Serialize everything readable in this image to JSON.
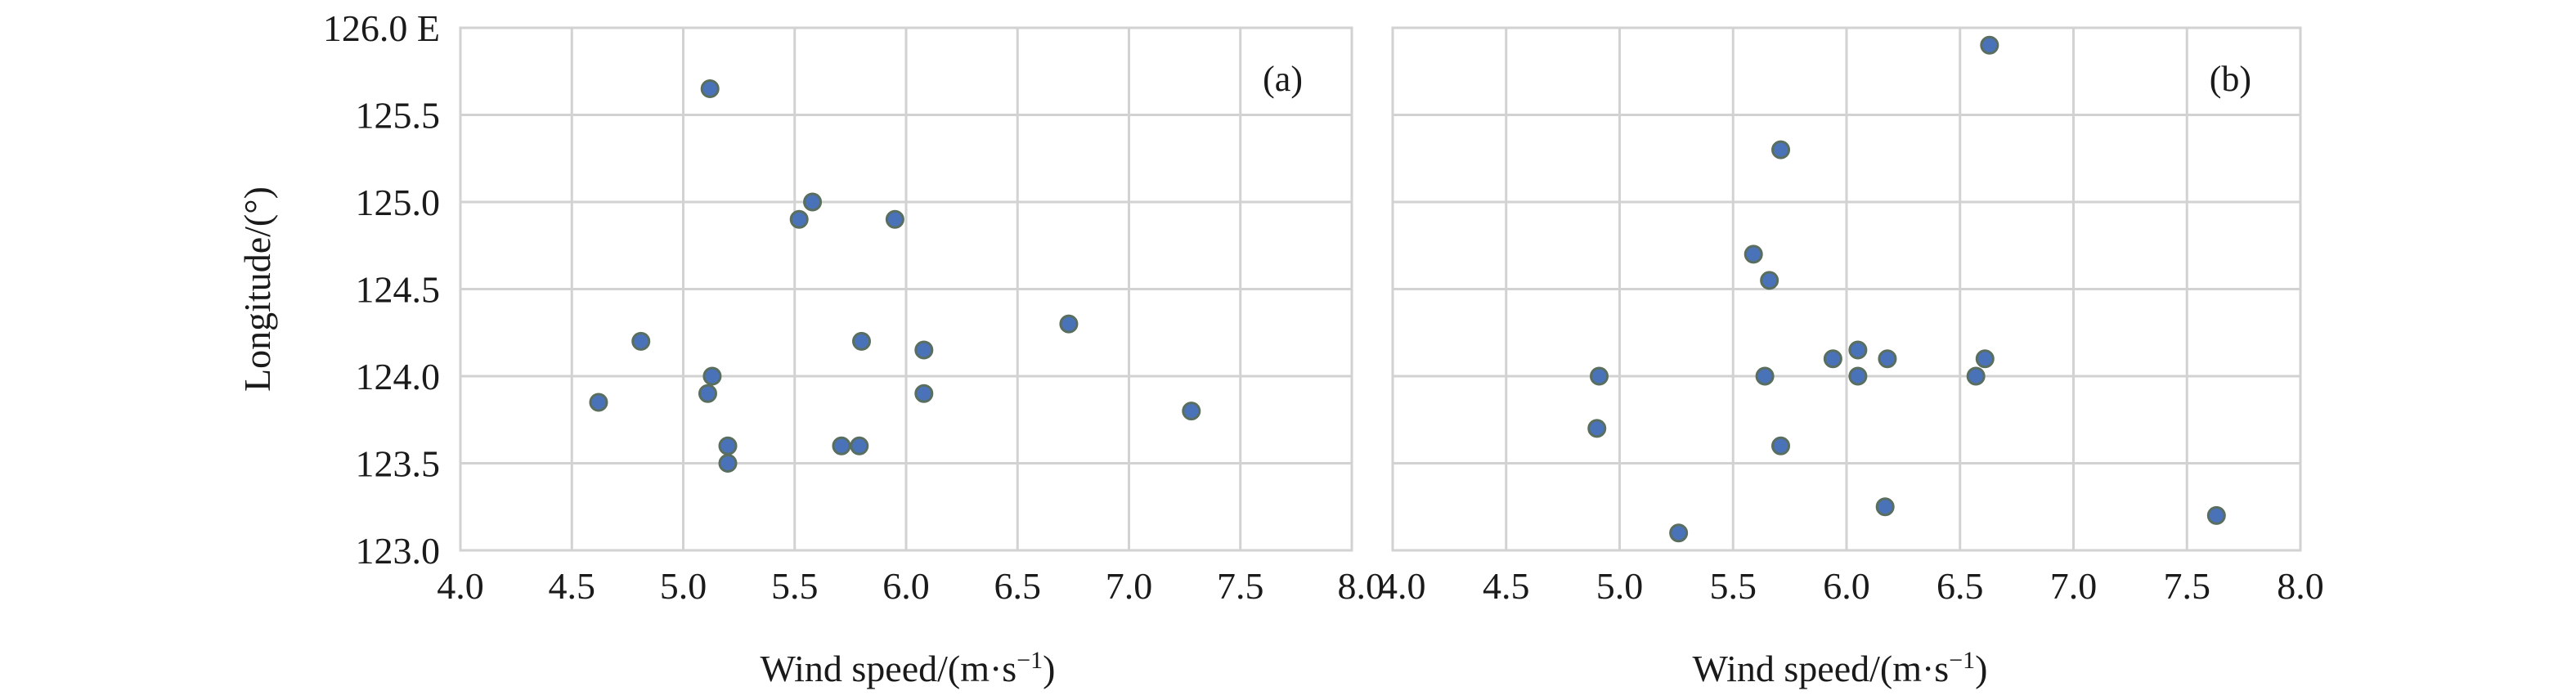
{
  "chart_data": [
    {
      "type": "scatter",
      "panel_label": "(a)",
      "xlabel": "Wind speed/(m·s",
      "xlabel_sup": "−1",
      "xlabel_close": ")",
      "ylabel": "Longitude/(°)",
      "xlim": [
        4.0,
        8.0
      ],
      "ylim": [
        123.0,
        126.0
      ],
      "x_ticks": [
        "4.0",
        "4.5",
        "5.0",
        "5.5",
        "6.0",
        "6.5",
        "7.0",
        "7.5",
        "8.0"
      ],
      "y_ticks": [
        "123.0",
        "123.5",
        "124.0",
        "124.5",
        "125.0",
        "125.5",
        "126.0 E"
      ],
      "grid": true,
      "points": [
        {
          "x": 5.12,
          "y": 125.65
        },
        {
          "x": 5.58,
          "y": 125.0
        },
        {
          "x": 5.52,
          "y": 124.9
        },
        {
          "x": 5.95,
          "y": 124.9
        },
        {
          "x": 6.73,
          "y": 124.3
        },
        {
          "x": 4.81,
          "y": 124.2
        },
        {
          "x": 5.8,
          "y": 124.2
        },
        {
          "x": 6.08,
          "y": 124.15
        },
        {
          "x": 5.13,
          "y": 124.0
        },
        {
          "x": 5.11,
          "y": 123.9
        },
        {
          "x": 6.08,
          "y": 123.9
        },
        {
          "x": 4.62,
          "y": 123.85
        },
        {
          "x": 7.28,
          "y": 123.8
        },
        {
          "x": 5.2,
          "y": 123.6
        },
        {
          "x": 5.71,
          "y": 123.6
        },
        {
          "x": 5.79,
          "y": 123.6
        },
        {
          "x": 5.2,
          "y": 123.5
        }
      ]
    },
    {
      "type": "scatter",
      "panel_label": "(b)",
      "xlabel": "Wind speed/(m·s",
      "xlabel_sup": "−1",
      "xlabel_close": ")",
      "ylabel": "",
      "xlim": [
        4.0,
        8.0
      ],
      "ylim": [
        123.0,
        126.0
      ],
      "x_ticks": [
        "4.0",
        "4.5",
        "5.0",
        "5.5",
        "6.0",
        "6.5",
        "7.0",
        "7.5",
        "8.0"
      ],
      "y_ticks": [],
      "grid": true,
      "points": [
        {
          "x": 6.63,
          "y": 125.9
        },
        {
          "x": 5.71,
          "y": 125.3
        },
        {
          "x": 5.59,
          "y": 124.7
        },
        {
          "x": 5.66,
          "y": 124.55
        },
        {
          "x": 5.94,
          "y": 124.1
        },
        {
          "x": 6.05,
          "y": 124.15
        },
        {
          "x": 6.18,
          "y": 124.1
        },
        {
          "x": 6.61,
          "y": 124.1
        },
        {
          "x": 4.91,
          "y": 124.0
        },
        {
          "x": 5.64,
          "y": 124.0
        },
        {
          "x": 6.05,
          "y": 124.0
        },
        {
          "x": 6.57,
          "y": 124.0
        },
        {
          "x": 4.9,
          "y": 123.7
        },
        {
          "x": 5.71,
          "y": 123.6
        },
        {
          "x": 6.17,
          "y": 123.25
        },
        {
          "x": 7.63,
          "y": 123.2
        },
        {
          "x": 5.26,
          "y": 123.1
        }
      ]
    }
  ]
}
